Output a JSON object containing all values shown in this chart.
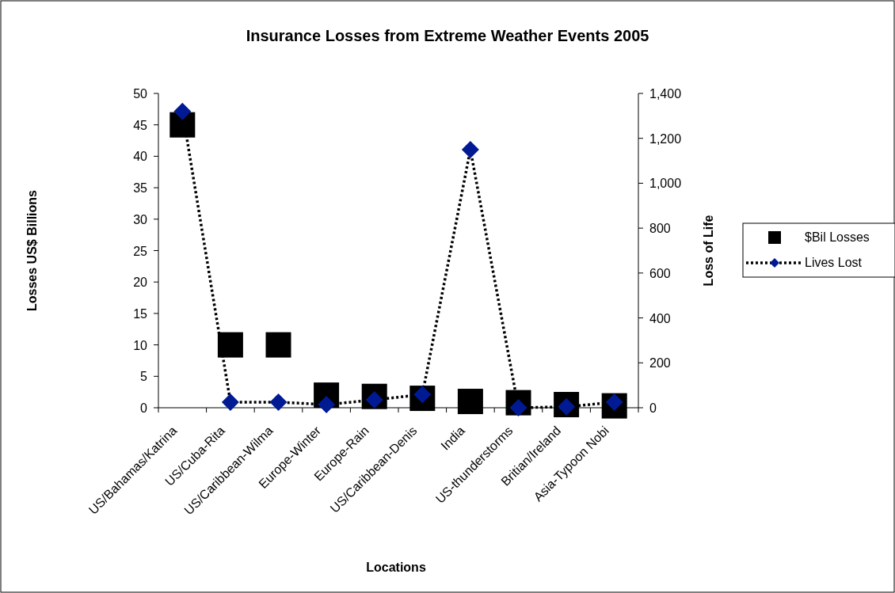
{
  "chart_data": {
    "type": "scatter",
    "title": "Insurance Losses from Extreme Weather Events 2005",
    "xlabel": "Locations",
    "ylabel": "Losses US$ Billions",
    "y2label": "Loss of Life",
    "categories": [
      "US/Bahamas/Katrina",
      "US/Cuba-Rita",
      "US/Caribbean-Wilma",
      "Europe-Winter",
      "Europe-Rain",
      "US/Caribbean-Denis",
      "India",
      "US-thunderstorms",
      "Britian/Ireland",
      "Asia-Typoon Nobi"
    ],
    "series": [
      {
        "name": "$Bil Losses",
        "marker": "square",
        "color": "#000000",
        "values": [
          45,
          10,
          10,
          2,
          1.8,
          1.5,
          1,
          0.8,
          0.5,
          0.3
        ]
      },
      {
        "name": "Lives Lost",
        "type": "line",
        "axis": "y2",
        "marker": "diamond",
        "line_style": "dotted",
        "color": "#001a94",
        "values": [
          1320,
          25,
          25,
          14,
          35,
          59,
          1150,
          0,
          4,
          25
        ]
      }
    ],
    "ylim": [
      0,
      50
    ],
    "yticks": [
      0,
      5,
      10,
      15,
      20,
      25,
      30,
      35,
      40,
      45,
      50
    ],
    "y2lim": [
      0,
      1400
    ],
    "y2ticks": [
      0,
      {
        "value": 200,
        "label": "200"
      },
      {
        "value": 400,
        "label": "400"
      },
      {
        "value": 600,
        "label": "600"
      },
      {
        "value": 800,
        "label": "800"
      },
      {
        "value": 1000,
        "label": "1,000"
      },
      {
        "value": 1200,
        "label": "1,200"
      },
      {
        "value": 1400,
        "label": "1,400"
      }
    ],
    "grid": false,
    "legend": "right"
  }
}
